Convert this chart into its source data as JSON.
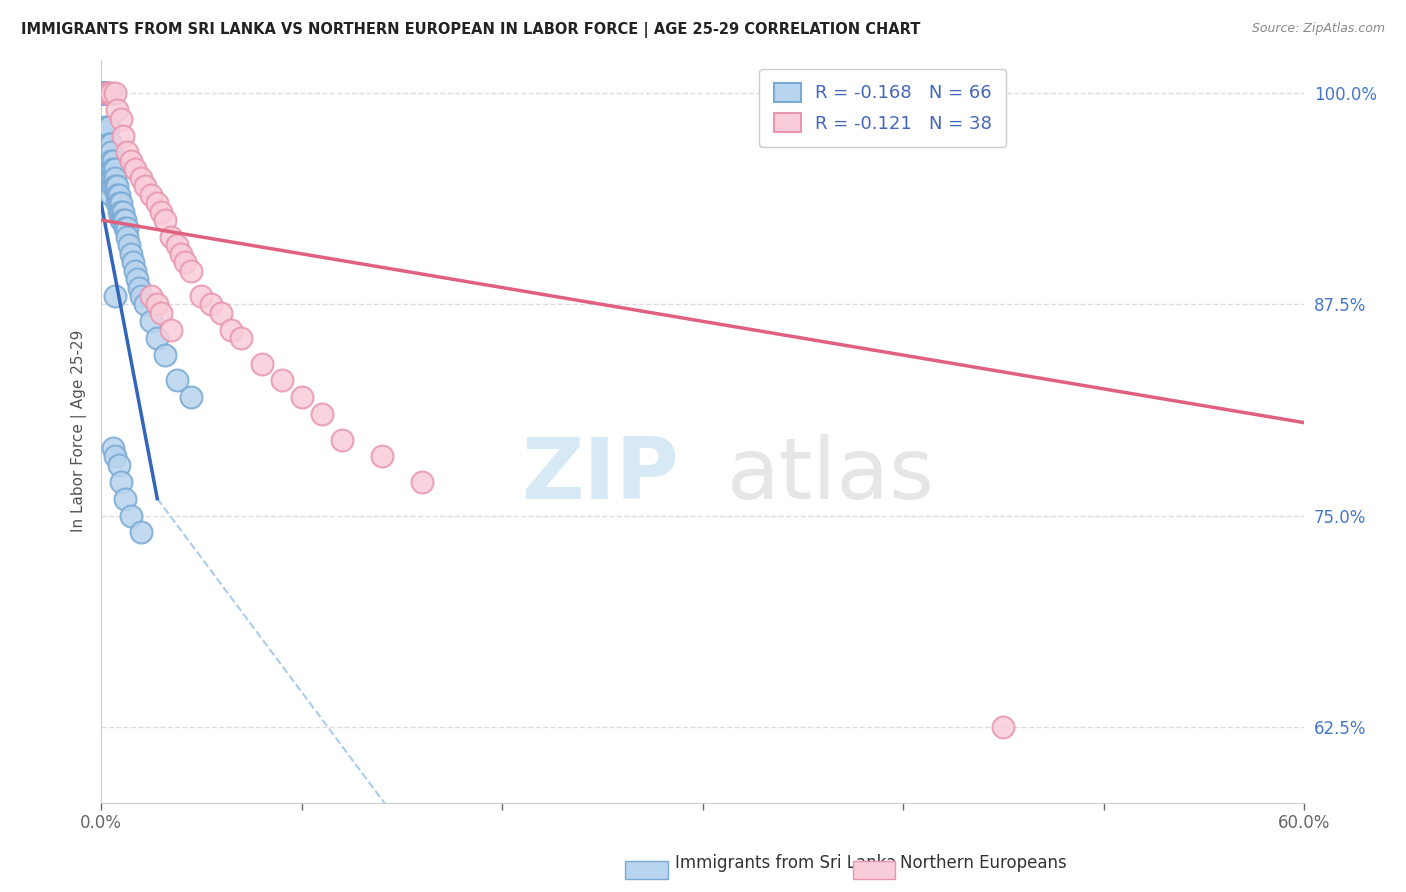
{
  "title": "IMMIGRANTS FROM SRI LANKA VS NORTHERN EUROPEAN IN LABOR FORCE | AGE 25-29 CORRELATION CHART",
  "source": "Source: ZipAtlas.com",
  "ylabel": "In Labor Force | Age 25-29",
  "xmin": 0.0,
  "xmax": 0.6,
  "ymin": 0.58,
  "ymax": 1.02,
  "yticks": [
    0.625,
    0.75,
    0.875,
    1.0
  ],
  "ytick_labels": [
    "62.5%",
    "75.0%",
    "87.5%",
    "100.0%"
  ],
  "xticks": [
    0.0,
    0.1,
    0.2,
    0.3,
    0.4,
    0.5,
    0.6
  ],
  "xtick_labels": [
    "0.0%",
    "",
    "",
    "",
    "",
    "",
    "60.0%"
  ],
  "blue_color": "#b8d4ee",
  "blue_edge_color": "#7aaad4",
  "pink_color": "#f8ccd8",
  "pink_edge_color": "#e896b0",
  "blue_line_color": "#3366bb",
  "pink_line_color": "#e06080",
  "dashed_line_color": "#aaccee",
  "legend_R_blue": "R = -0.168",
  "legend_N_blue": "N = 66",
  "legend_R_pink": "R = -0.121",
  "legend_N_pink": "N = 38",
  "blue_scatter_x": [
    0.001,
    0.001,
    0.001,
    0.002,
    0.002,
    0.002,
    0.002,
    0.003,
    0.003,
    0.003,
    0.003,
    0.003,
    0.004,
    0.004,
    0.004,
    0.004,
    0.005,
    0.005,
    0.005,
    0.005,
    0.005,
    0.005,
    0.005,
    0.006,
    0.006,
    0.006,
    0.006,
    0.007,
    0.007,
    0.007,
    0.007,
    0.008,
    0.008,
    0.008,
    0.009,
    0.009,
    0.009,
    0.01,
    0.01,
    0.01,
    0.011,
    0.011,
    0.012,
    0.012,
    0.013,
    0.013,
    0.014,
    0.015,
    0.016,
    0.017,
    0.018,
    0.019,
    0.02,
    0.022,
    0.025,
    0.028,
    0.032,
    0.038,
    0.045,
    0.006,
    0.007,
    0.009,
    0.01,
    0.012,
    0.015,
    0.02
  ],
  "blue_scatter_y": [
    1.0,
    1.0,
    1.0,
    1.0,
    1.0,
    1.0,
    0.98,
    1.0,
    1.0,
    0.98,
    0.97,
    0.96,
    0.98,
    0.97,
    0.96,
    0.95,
    0.97,
    0.965,
    0.96,
    0.955,
    0.95,
    0.945,
    0.94,
    0.96,
    0.955,
    0.95,
    0.945,
    0.955,
    0.95,
    0.945,
    0.88,
    0.945,
    0.94,
    0.935,
    0.94,
    0.935,
    0.93,
    0.935,
    0.93,
    0.925,
    0.93,
    0.925,
    0.925,
    0.92,
    0.92,
    0.915,
    0.91,
    0.905,
    0.9,
    0.895,
    0.89,
    0.885,
    0.88,
    0.875,
    0.865,
    0.855,
    0.845,
    0.83,
    0.82,
    0.79,
    0.785,
    0.78,
    0.77,
    0.76,
    0.75,
    0.74
  ],
  "pink_scatter_x": [
    0.003,
    0.004,
    0.005,
    0.007,
    0.008,
    0.01,
    0.011,
    0.013,
    0.015,
    0.017,
    0.02,
    0.022,
    0.025,
    0.028,
    0.03,
    0.032,
    0.035,
    0.038,
    0.04,
    0.042,
    0.045,
    0.05,
    0.055,
    0.06,
    0.065,
    0.07,
    0.08,
    0.09,
    0.1,
    0.11,
    0.12,
    0.14,
    0.16,
    0.45,
    0.025,
    0.028,
    0.03,
    0.035
  ],
  "pink_scatter_y": [
    1.0,
    1.0,
    1.0,
    1.0,
    0.99,
    0.985,
    0.975,
    0.965,
    0.96,
    0.955,
    0.95,
    0.945,
    0.94,
    0.935,
    0.93,
    0.925,
    0.915,
    0.91,
    0.905,
    0.9,
    0.895,
    0.88,
    0.875,
    0.87,
    0.86,
    0.855,
    0.84,
    0.83,
    0.82,
    0.81,
    0.795,
    0.785,
    0.77,
    0.625,
    0.88,
    0.875,
    0.87,
    0.86
  ],
  "watermark_zip": "ZIP",
  "watermark_atlas": "atlas",
  "background_color": "#ffffff",
  "grid_color": "#dddddd",
  "blue_trend_xstart": 0.0,
  "blue_trend_xend": 0.028,
  "blue_trend_ystart": 0.935,
  "blue_trend_yend": 0.76,
  "pink_trend_xstart": 0.0,
  "pink_trend_xend": 0.6,
  "pink_trend_ystart": 0.925,
  "pink_trend_yend": 0.805,
  "dashed_xstart": 0.028,
  "dashed_xend": 0.6,
  "dashed_ystart": 0.76,
  "dashed_yend": -0.15
}
